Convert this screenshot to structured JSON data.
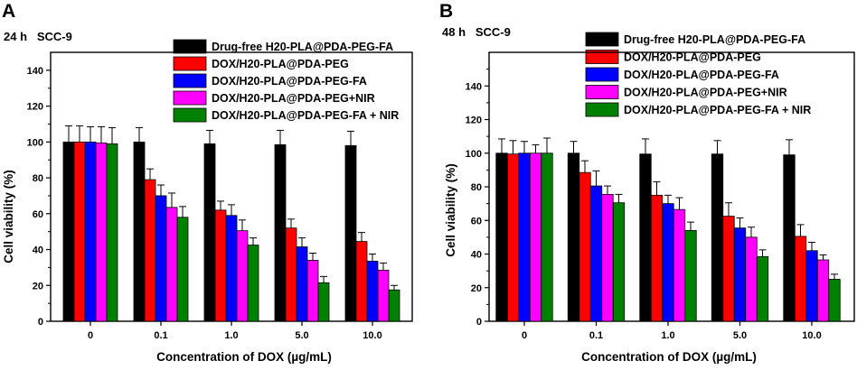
{
  "chart_data": [
    {
      "type": "bar",
      "panel_label": "A",
      "corner_label": "24 h   SCC-9",
      "xlabel": "Concentration of DOX (µg/mL)",
      "ylabel": "Cell viability (%)",
      "ylim": [
        0,
        150
      ],
      "yticks": [
        0,
        20,
        40,
        60,
        80,
        100,
        120,
        140
      ],
      "legend_position": "top-right",
      "categories": [
        "0",
        "0.1",
        "1.0",
        "5.0",
        "10.0"
      ],
      "series": [
        {
          "name": "Drug-free H20-PLA@PDA-PEG-FA",
          "color": "#000000",
          "values": [
            100,
            100,
            99,
            98.5,
            98
          ],
          "errors": [
            9,
            8,
            7.5,
            8,
            8
          ]
        },
        {
          "name": "DOX/H20-PLA@PDA-PEG",
          "color": "#ff0000",
          "values": [
            100,
            79,
            62,
            52,
            44.5
          ],
          "errors": [
            9,
            6,
            5,
            5,
            5
          ]
        },
        {
          "name": "DOX/H20-PLA@PDA-PEG-FA",
          "color": "#0000ff",
          "values": [
            100,
            70,
            59,
            41.5,
            33.5
          ],
          "errors": [
            8.5,
            6,
            6,
            5,
            4
          ]
        },
        {
          "name": "DOX/H20-PLA@PDA-PEG+NIR",
          "color": "#ff00ff",
          "values": [
            99.5,
            63.5,
            50.5,
            34,
            28.5
          ],
          "errors": [
            9,
            8,
            6,
            4,
            4
          ]
        },
        {
          "name": "DOX/H20-PLA@PDA-PEG-FA + NIR",
          "color": "#008000",
          "values": [
            99,
            58,
            42.5,
            21.5,
            17.5
          ],
          "errors": [
            9,
            6,
            4,
            3.5,
            2.5
          ]
        }
      ]
    },
    {
      "type": "bar",
      "panel_label": "B",
      "corner_label": "48 h   SCC-9",
      "xlabel": "Concentration of DOX (µg/mL)",
      "ylabel": "Cell viability (%)",
      "ylim": [
        0,
        160
      ],
      "yticks": [
        0,
        20,
        40,
        60,
        80,
        100,
        120,
        140
      ],
      "legend_position": "top-right",
      "categories": [
        "0",
        "0.1",
        "1.0",
        "5.0",
        "10.0"
      ],
      "series": [
        {
          "name": "Drug-free H20-PLA@PDA-PEG-FA",
          "color": "#000000",
          "values": [
            100,
            100,
            99.5,
            99.5,
            99
          ],
          "errors": [
            8.5,
            7,
            9,
            8,
            9
          ]
        },
        {
          "name": "DOX/H20-PLA@PDA-PEG",
          "color": "#ff0000",
          "values": [
            99.5,
            88.5,
            75,
            62.5,
            50.5
          ],
          "errors": [
            8,
            7,
            8,
            8,
            7
          ]
        },
        {
          "name": "DOX/H20-PLA@PDA-PEG-FA",
          "color": "#0000ff",
          "values": [
            100,
            80.5,
            70,
            55.5,
            42
          ],
          "errors": [
            7,
            9,
            5,
            6,
            5
          ]
        },
        {
          "name": "DOX/H20-PLA@PDA-PEG+NIR",
          "color": "#ff00ff",
          "values": [
            100,
            75.5,
            66.5,
            50,
            36.5
          ],
          "errors": [
            5,
            5,
            7,
            6,
            3
          ]
        },
        {
          "name": "DOX/H20-PLA@PDA-PEG-FA + NIR",
          "color": "#008000",
          "values": [
            100,
            70.5,
            54,
            38.5,
            25
          ],
          "errors": [
            9,
            5,
            5,
            4,
            3
          ]
        }
      ]
    }
  ]
}
